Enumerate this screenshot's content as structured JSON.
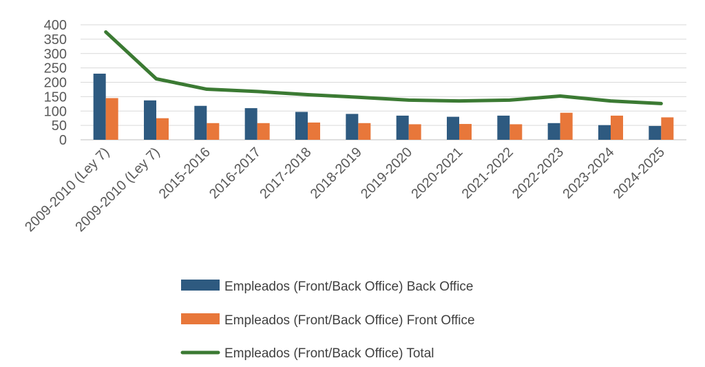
{
  "chart_data": {
    "type": "bar",
    "title": "",
    "xlabel": "",
    "ylabel": "",
    "ylim": [
      0,
      400
    ],
    "yticks": [
      0,
      50,
      100,
      150,
      200,
      250,
      300,
      350,
      400
    ],
    "grid": true,
    "legend_position": "bottom",
    "categories": [
      "2009-2010 (Ley 7)",
      "2009-2010 (Ley 7)",
      "2015-2016",
      "2016-2017",
      "2017-2018",
      "2018-2019",
      "2019-2020",
      "2020-2021",
      "2021-2022",
      "2022-2023",
      "2023-2024",
      "2024-2025"
    ],
    "series": [
      {
        "name": "Empleados (Front/Back Office)  Back Office",
        "type": "bar",
        "color": "#2E5A80",
        "values": [
          230,
          137,
          118,
          110,
          97,
          90,
          84,
          80,
          84,
          58,
          51,
          48
        ]
      },
      {
        "name": "Empleados (Front/Back Office)  Front Office",
        "type": "bar",
        "color": "#E8773A",
        "values": [
          145,
          75,
          58,
          58,
          60,
          58,
          54,
          55,
          54,
          94,
          84,
          78
        ]
      },
      {
        "name": "Empleados (Front/Back Office)  Total",
        "type": "line",
        "color": "#3B7A33",
        "values": [
          375,
          212,
          176,
          168,
          157,
          148,
          138,
          135,
          138,
          152,
          135,
          126
        ]
      }
    ]
  }
}
